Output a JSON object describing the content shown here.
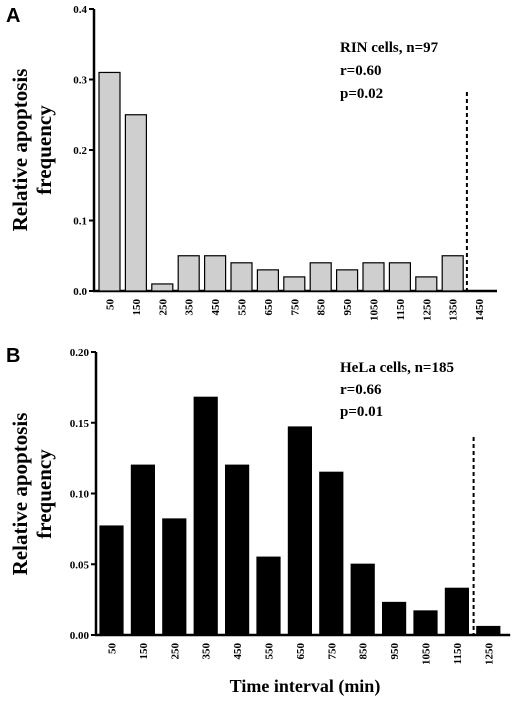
{
  "chart_data": [
    {
      "type": "bar",
      "panel": "A",
      "categories": [
        "50",
        "150",
        "250",
        "350",
        "450",
        "550",
        "650",
        "750",
        "850",
        "950",
        "1050",
        "1150",
        "1250",
        "1350",
        "1450"
      ],
      "values": [
        0.31,
        0.25,
        0.01,
        0.05,
        0.05,
        0.04,
        0.03,
        0.02,
        0.04,
        0.03,
        0.04,
        0.04,
        0.02,
        0.05,
        null
      ],
      "ylabel_lines": [
        "Relative apoptosis",
        "frequency"
      ],
      "xlabel": "",
      "ylim": [
        0,
        0.4
      ],
      "yticks": [
        "0.0",
        "0.1",
        "0.2",
        "0.3",
        "0.4"
      ],
      "ytick_values": [
        0,
        0.1,
        0.2,
        0.3,
        0.4
      ],
      "annotation": [
        "RIN cells, n=97",
        "r=0.60",
        "p=0.02"
      ],
      "threshold_after_category": "1350",
      "bar_color": "#cfcfcf",
      "grid": false
    },
    {
      "type": "bar",
      "panel": "B",
      "categories": [
        "50",
        "150",
        "250",
        "350",
        "450",
        "550",
        "650",
        "750",
        "850",
        "950",
        "1050",
        "1150",
        "1250"
      ],
      "values": [
        0.077,
        0.12,
        0.082,
        0.168,
        0.12,
        0.055,
        0.147,
        0.115,
        0.05,
        0.023,
        0.017,
        0.033,
        0.006
      ],
      "ylabel_lines": [
        "Relative apoptosis",
        "frequency"
      ],
      "xlabel": "Time interval (min)",
      "ylim": [
        0,
        0.2
      ],
      "yticks": [
        "0.00",
        "0.05",
        "0.10",
        "0.15",
        "0.20"
      ],
      "ytick_values": [
        0,
        0.05,
        0.1,
        0.15,
        0.2
      ],
      "annotation": [
        "HeLa cells, n=185",
        "r=0.66",
        "p=0.01"
      ],
      "threshold_after_category": "1150",
      "bar_color": "#000000",
      "grid": false
    }
  ]
}
